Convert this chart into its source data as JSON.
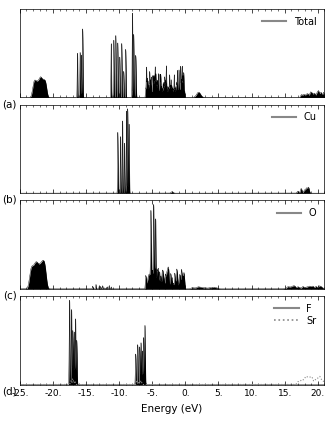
{
  "xlim": [
    -25,
    21
  ],
  "xticks": [
    -25,
    -20,
    -15,
    -10,
    -5,
    0,
    5,
    10,
    15,
    20
  ],
  "xticklabels": [
    "-25.",
    "-20.",
    "-15.",
    "-10.",
    "-5.",
    "0.",
    "5.",
    "10.",
    "15.",
    "20."
  ],
  "xlabel": "Energy (eV)",
  "panel_labels": [
    "(a)",
    "(b)",
    "(c)",
    "(d)"
  ],
  "background_color": "#ffffff",
  "figsize": [
    3.31,
    4.42
  ],
  "dpi": 100
}
